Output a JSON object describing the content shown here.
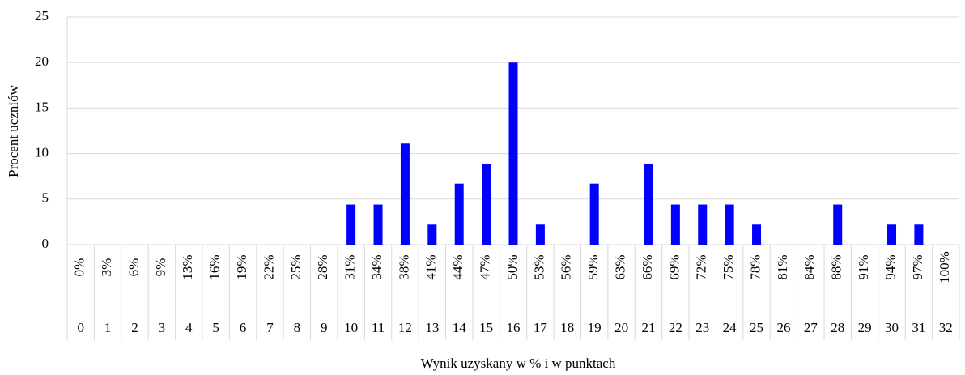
{
  "chart_data": {
    "type": "bar",
    "x_label": "Wynik uzyskany w % i w punktach",
    "y_label": "Procent uczniów",
    "categories": [
      "0",
      "1",
      "2",
      "3",
      "4",
      "5",
      "6",
      "7",
      "8",
      "9",
      "10",
      "11",
      "12",
      "13",
      "14",
      "15",
      "16",
      "17",
      "18",
      "19",
      "20",
      "21",
      "22",
      "23",
      "24",
      "25",
      "26",
      "27",
      "28",
      "29",
      "30",
      "31",
      "32"
    ],
    "category_percent_labels": [
      "0%",
      "3%",
      "6%",
      "9%",
      "13%",
      "16%",
      "19%",
      "22%",
      "25%",
      "28%",
      "31%",
      "34%",
      "38%",
      "41%",
      "44%",
      "47%",
      "50%",
      "53%",
      "56%",
      "59%",
      "63%",
      "66%",
      "69%",
      "72%",
      "75%",
      "78%",
      "81%",
      "84%",
      "88%",
      "91%",
      "94%",
      "97%",
      "100%"
    ],
    "values": [
      0,
      0,
      0,
      0,
      0,
      0,
      0,
      0,
      0,
      0,
      4.4,
      4.4,
      11.1,
      2.2,
      6.7,
      8.9,
      20,
      2.2,
      0,
      6.7,
      0,
      8.9,
      4.4,
      4.4,
      4.4,
      2.2,
      0,
      0,
      4.4,
      0,
      2.2,
      2.2,
      0
    ],
    "color": "#0000ff",
    "ylim": [
      0,
      25
    ],
    "yticks": [
      0,
      5,
      10,
      15,
      20,
      25
    ],
    "grid": true
  }
}
